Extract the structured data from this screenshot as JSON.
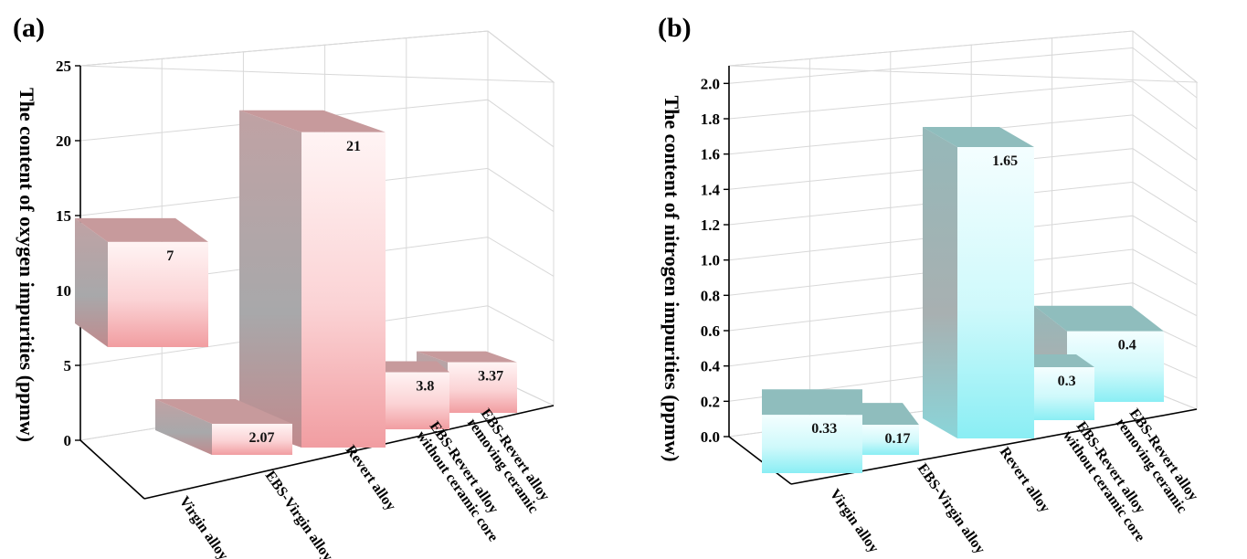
{
  "chart_data": [
    {
      "type": "bar",
      "panel": "(a)",
      "ylabel": "The content of oxygen impurities (ppmw)",
      "ylim": [
        0,
        25
      ],
      "yticks": [
        0,
        5,
        10,
        15,
        20,
        25
      ],
      "categories": [
        [
          "Virgin alloy"
        ],
        [
          "EBS-Virgin alloy"
        ],
        [
          "Revert alloy"
        ],
        [
          "EBS-Revert alloy",
          "without ceramic core"
        ],
        [
          "EBS-Revert alloy",
          "removing ceramic"
        ]
      ],
      "values": [
        7,
        2.07,
        21,
        3.8,
        3.37
      ],
      "value_labels": [
        "7",
        "2.07",
        "21",
        "3.8",
        "3.37"
      ],
      "colors": {
        "front": "#f4a6aa",
        "front_light": "#fff4f4",
        "side": "#a5a5a8",
        "top": "#c79a9c"
      }
    },
    {
      "type": "bar",
      "panel": "(b)",
      "ylabel": "The content of nitrogen impurities (ppmw)",
      "ylim": [
        0,
        2.1
      ],
      "yticks": [
        "0.0",
        "0.2",
        "0.4",
        "0.6",
        "0.8",
        "1.0",
        "1.2",
        "1.4",
        "1.6",
        "1.8",
        "2.0"
      ],
      "categories": [
        [
          "Virgin alloy"
        ],
        [
          "EBS-Virgin alloy"
        ],
        [
          "Revert alloy"
        ],
        [
          "EBS-Revert alloy",
          "without ceramic core"
        ],
        [
          "EBS-Revert alloy",
          "removing ceramic"
        ]
      ],
      "values": [
        0.33,
        0.17,
        1.65,
        0.3,
        0.4
      ],
      "value_labels": [
        "0.33",
        "0.17",
        "1.65",
        "0.3",
        "0.4"
      ],
      "colors": {
        "front": "#8ff0f5",
        "front_light": "#f4feff",
        "side": "#a4b2b3",
        "top": "#8fbdbd"
      }
    }
  ]
}
